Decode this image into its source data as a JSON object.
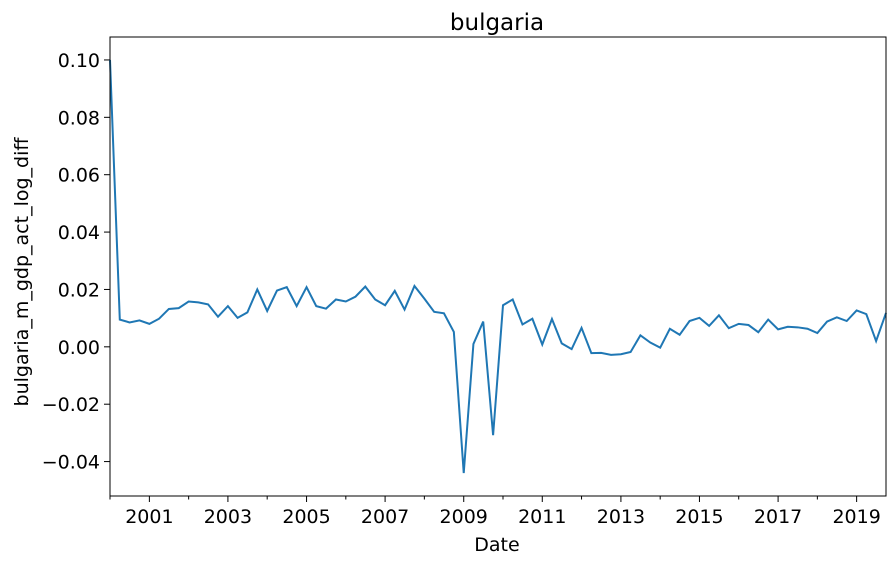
{
  "chart_data": {
    "type": "line",
    "title": "bulgaria",
    "xlabel": "Date",
    "ylabel": "bulgaria_m_gdp_act_log_diff",
    "xlim": [
      "2000-01-01",
      "2019-10-01"
    ],
    "ylim": [
      -0.052,
      0.108
    ],
    "grid": false,
    "line_color": "#1f77b4",
    "x_ticks": [
      {
        "date": "2001-01-01",
        "label": "2001"
      },
      {
        "date": "2003-01-01",
        "label": "2003"
      },
      {
        "date": "2005-01-01",
        "label": "2005"
      },
      {
        "date": "2007-01-01",
        "label": "2007"
      },
      {
        "date": "2009-01-01",
        "label": "2009"
      },
      {
        "date": "2011-01-01",
        "label": "2011"
      },
      {
        "date": "2013-01-01",
        "label": "2013"
      },
      {
        "date": "2015-01-01",
        "label": "2015"
      },
      {
        "date": "2017-01-01",
        "label": "2017"
      },
      {
        "date": "2019-01-01",
        "label": "2019"
      }
    ],
    "x_minor_ticks": [
      "2000-01-01",
      "2002-01-01",
      "2004-01-01",
      "2006-01-01",
      "2008-01-01",
      "2010-01-01",
      "2012-01-01",
      "2014-01-01",
      "2016-01-01",
      "2018-01-01"
    ],
    "y_ticks": [
      {
        "value": 0.1,
        "label": "0.10"
      },
      {
        "value": 0.08,
        "label": "0.08"
      },
      {
        "value": 0.06,
        "label": "0.06"
      },
      {
        "value": 0.04,
        "label": "0.04"
      },
      {
        "value": 0.02,
        "label": "0.02"
      },
      {
        "value": 0.0,
        "label": "0.00"
      },
      {
        "value": -0.02,
        "label": "−0.02"
      },
      {
        "value": -0.04,
        "label": "−0.04"
      }
    ],
    "series": [
      {
        "x": [
          "2000-01-01",
          "2000-04-01",
          "2000-07-01",
          "2000-10-01",
          "2001-01-01",
          "2001-04-01",
          "2001-07-01",
          "2001-10-01",
          "2002-01-01",
          "2002-04-01",
          "2002-07-01",
          "2002-10-01",
          "2003-01-01",
          "2003-04-01",
          "2003-07-01",
          "2003-10-01",
          "2004-01-01",
          "2004-04-01",
          "2004-07-01",
          "2004-10-01",
          "2005-01-01",
          "2005-04-01",
          "2005-07-01",
          "2005-10-01",
          "2006-01-01",
          "2006-04-01",
          "2006-07-01",
          "2006-10-01",
          "2007-01-01",
          "2007-04-01",
          "2007-07-01",
          "2007-10-01",
          "2008-01-01",
          "2008-04-01",
          "2008-07-01",
          "2008-10-01",
          "2009-01-01",
          "2009-04-01",
          "2009-07-01",
          "2009-10-01",
          "2010-01-01",
          "2010-04-01",
          "2010-07-01",
          "2010-10-01",
          "2011-01-01",
          "2011-04-01",
          "2011-07-01",
          "2011-10-01",
          "2012-01-01",
          "2012-04-01",
          "2012-07-01",
          "2012-10-01",
          "2013-01-01",
          "2013-04-01",
          "2013-07-01",
          "2013-10-01",
          "2014-01-01",
          "2014-04-01",
          "2014-07-01",
          "2014-10-01",
          "2015-01-01",
          "2015-04-01",
          "2015-07-01",
          "2015-10-01",
          "2016-01-01",
          "2016-04-01",
          "2016-07-01",
          "2016-10-01",
          "2017-01-01",
          "2017-04-01",
          "2017-07-01",
          "2017-10-01",
          "2018-01-01",
          "2018-04-01",
          "2018-07-01",
          "2018-10-01",
          "2019-01-01",
          "2019-04-01",
          "2019-07-01",
          "2019-10-01"
        ],
        "values": [
          0.1,
          0.0095,
          0.0085,
          0.0092,
          0.008,
          0.0098,
          0.0132,
          0.0135,
          0.0158,
          0.0155,
          0.0148,
          0.0105,
          0.0142,
          0.0101,
          0.012,
          0.02,
          0.0125,
          0.0196,
          0.0208,
          0.0142,
          0.0208,
          0.0142,
          0.0133,
          0.0165,
          0.0158,
          0.0175,
          0.021,
          0.0165,
          0.0145,
          0.0195,
          0.013,
          0.0212,
          0.0168,
          0.0122,
          0.0117,
          0.0052,
          -0.044,
          0.001,
          0.0088,
          -0.0308,
          0.0145,
          0.0165,
          0.0078,
          0.0098,
          0.0008,
          0.0097,
          0.0012,
          -0.0008,
          0.0066,
          -0.0022,
          -0.0021,
          -0.0028,
          -0.0026,
          -0.0018,
          0.004,
          0.0015,
          -0.0003,
          0.0063,
          0.0042,
          0.009,
          0.0101,
          0.0073,
          0.011,
          0.0065,
          0.008,
          0.0076,
          0.0051,
          0.0095,
          0.0061,
          0.007,
          0.0068,
          0.0063,
          0.0048,
          0.0088,
          0.0103,
          0.009,
          0.0127,
          0.0114,
          0.002,
          0.0118
        ]
      }
    ]
  }
}
